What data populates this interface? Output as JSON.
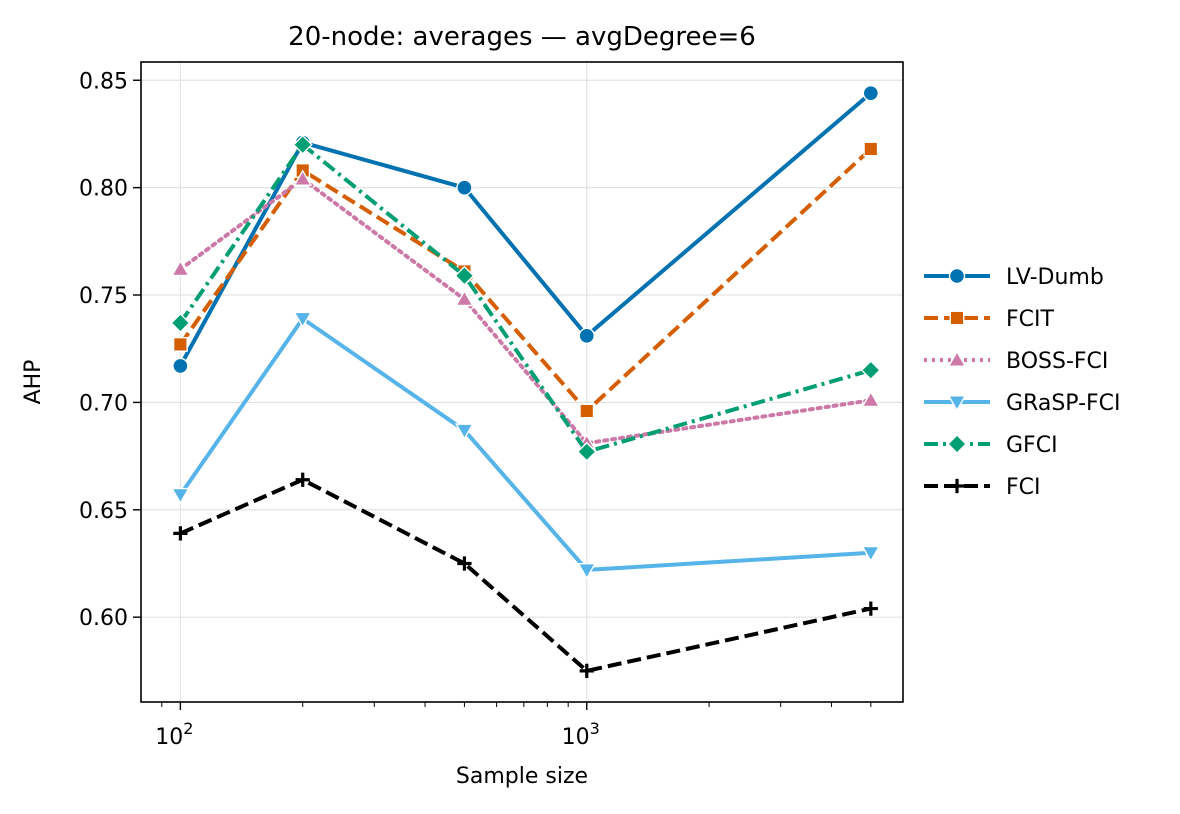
{
  "chart_data": {
    "type": "line",
    "title": "20-node: averages — avgDegree=6",
    "xlabel": "Sample size",
    "ylabel": "AHP",
    "xscale": "log",
    "xlim": [
      80,
      6000
    ],
    "ylim": [
      0.5605,
      0.8585
    ],
    "x": [
      100,
      200,
      500,
      1000,
      5000
    ],
    "xticks": [
      {
        "value": 100,
        "base": "10",
        "exp": "2"
      },
      {
        "value": 1000,
        "base": "10",
        "exp": "3"
      }
    ],
    "yticks": [
      {
        "value": 0.6,
        "label": "0.60"
      },
      {
        "value": 0.65,
        "label": "0.65"
      },
      {
        "value": 0.7,
        "label": "0.70"
      },
      {
        "value": 0.75,
        "label": "0.75"
      },
      {
        "value": 0.8,
        "label": "0.80"
      },
      {
        "value": 0.85,
        "label": "0.85"
      }
    ],
    "grid": true,
    "legend_position": "right",
    "series": [
      {
        "name": "LV-Dumb",
        "color": "#0072B2",
        "marker": "circle",
        "dash": "solid",
        "values": [
          0.717,
          0.821,
          0.8,
          0.731,
          0.844
        ]
      },
      {
        "name": "FCIT",
        "color": "#D55E00",
        "marker": "square",
        "dash": "dashed",
        "values": [
          0.727,
          0.808,
          0.761,
          0.696,
          0.818
        ]
      },
      {
        "name": "BOSS-FCI",
        "color": "#CC79A7",
        "marker": "triangle-up",
        "dash": "dotted",
        "values": [
          0.762,
          0.804,
          0.748,
          0.681,
          0.701
        ]
      },
      {
        "name": "GRaSP-FCI",
        "color": "#56B4E9",
        "marker": "triangle-down",
        "dash": "solid",
        "values": [
          0.657,
          0.739,
          0.687,
          0.622,
          0.63
        ]
      },
      {
        "name": "GFCI",
        "color": "#009E73",
        "marker": "diamond",
        "dash": "dashdot",
        "values": [
          0.737,
          0.82,
          0.759,
          0.677,
          0.715
        ]
      },
      {
        "name": "FCI",
        "color": "#000000",
        "marker": "plus",
        "dash": "dashed",
        "values": [
          0.639,
          0.664,
          0.625,
          0.575,
          0.604
        ]
      }
    ]
  }
}
